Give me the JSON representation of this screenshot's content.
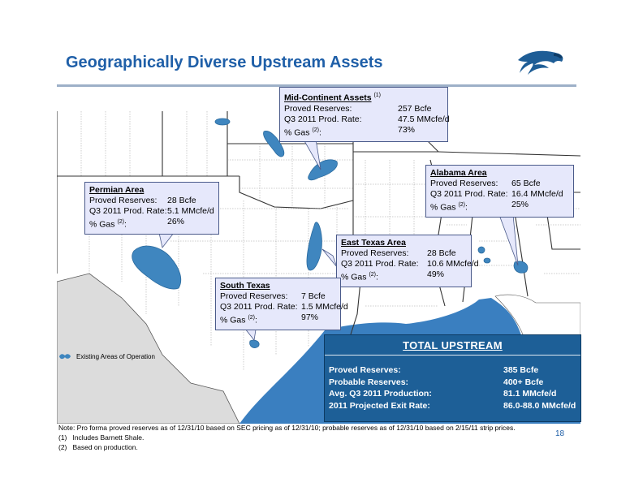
{
  "title": "Geographically Diverse Upstream Assets",
  "callouts": {
    "mid_continent": {
      "heading": "Mid-Continent Assets",
      "heading_sup": "(1)",
      "rows": [
        {
          "label": "Proved Reserves:",
          "sup": "",
          "value": "257 Bcfe"
        },
        {
          "label": "Q3 2011 Prod. Rate:",
          "sup": "",
          "value": "47.5 MMcfe/d"
        },
        {
          "label": "% Gas ",
          "sup": "(2)",
          "value": "73%"
        }
      ]
    },
    "alabama": {
      "heading": "Alabama Area",
      "rows": [
        {
          "label": "Proved Reserves:",
          "sup": "",
          "value": "65 Bcfe"
        },
        {
          "label": "Q3 2011 Prod. Rate:",
          "sup": "",
          "value": "16.4 MMcfe/d"
        },
        {
          "label": "% Gas ",
          "sup": "(2)",
          "value": "25%"
        }
      ]
    },
    "permian": {
      "heading": "Permian Area",
      "rows": [
        {
          "label": "Proved Reserves:",
          "sup": "",
          "value": "28 Bcfe"
        },
        {
          "label": "Q3 2011 Prod. Rate:",
          "sup": "",
          "value": "5.1 MMcfe/d"
        },
        {
          "label": "% Gas ",
          "sup": "(2)",
          "value": "26%"
        }
      ]
    },
    "east_texas": {
      "heading": "East Texas Area",
      "rows": [
        {
          "label": "Proved Reserves:",
          "sup": "",
          "value": "28 Bcfe"
        },
        {
          "label": "Q3 2011 Prod. Rate:",
          "sup": "",
          "value": "10.6 MMcfe/d"
        },
        {
          "label": "% Gas ",
          "sup": "(2)",
          "value": "49%"
        }
      ]
    },
    "south_texas": {
      "heading": "South Texas",
      "rows": [
        {
          "label": "Proved Reserves:",
          "sup": "",
          "value": "7 Bcfe"
        },
        {
          "label": "Q3 2011 Prod. Rate:",
          "sup": "",
          "value": "1.5 MMcfe/d"
        },
        {
          "label": "% Gas ",
          "sup": "(2)",
          "value": "97%"
        }
      ]
    }
  },
  "legend": {
    "label": "Existing Areas of Operation"
  },
  "total": {
    "heading": "TOTAL  UPSTREAM",
    "rows": [
      {
        "label": "Proved Reserves:",
        "value": "385 Bcfe"
      },
      {
        "label": "Probable Reserves:",
        "value": "400+ Bcfe"
      },
      {
        "label": "Avg. Q3 2011 Production:",
        "value": "81.1 MMcfe/d"
      },
      {
        "label": "2011 Projected Exit Rate:",
        "value": "86.0-88.0 MMcfe/d"
      }
    ]
  },
  "notes": [
    "Note: Pro forma proved reserves as of 12/31/10 based on SEC pricing as of 12/31/10; probable reserves as of 12/31/10 based on 2/15/11 strip prices.",
    "(1)   Includes Barnett Shale.",
    "(2)   Based on production."
  ],
  "page_number": "18",
  "colors": {
    "title": "#1f5fa8",
    "asset": "#3f86bf",
    "total_bg": "#1d5f97",
    "callout_bg": "#e6e8fb",
    "water": "#3a7fc0"
  },
  "icons": {
    "logo": "eagle-logo-icon",
    "legend": "asset-blob-icon"
  }
}
